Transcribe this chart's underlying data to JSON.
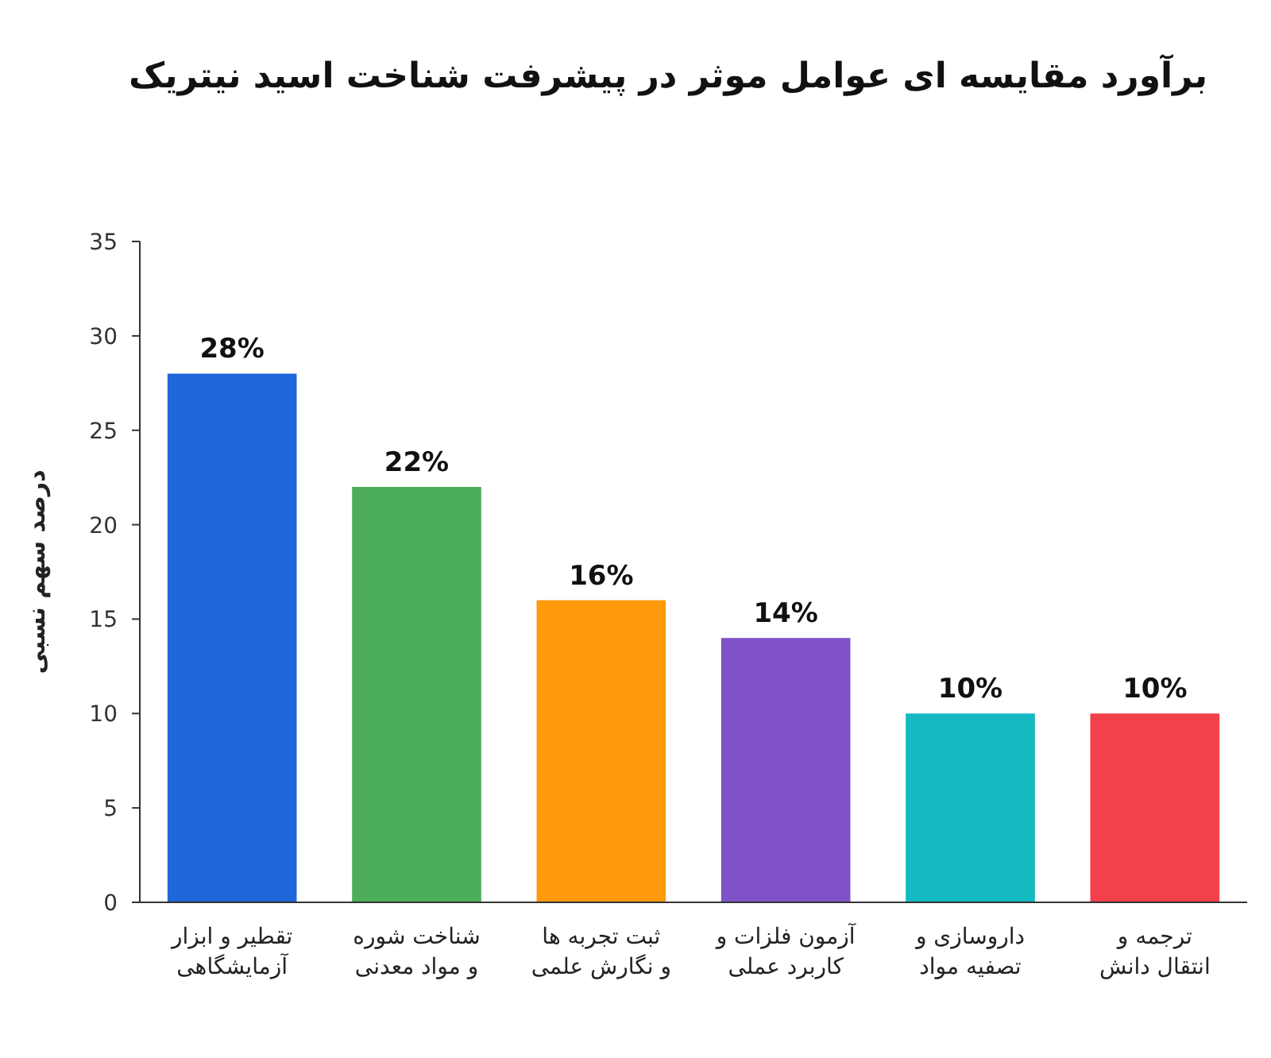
{
  "chart_data": {
    "type": "bar",
    "title": "برآورد مقایسه ای عوامل موثر در پیشرفت شناخت اسید نیتریک",
    "ylabel": "درصد سهم نسبی",
    "categories": [
      "تقطیر و ابزار\nآزمایشگاهی",
      "شناخت شوره\nو مواد معدنی",
      "ثبت تجربه ها\nو نگارش علمی",
      "آزمون فلزات و\nکاربرد عملی",
      "داروسازی و\nتصفیه مواد",
      "ترجمه و\nانتقال دانش"
    ],
    "values": [
      28,
      22,
      16,
      14,
      10,
      10
    ],
    "value_labels": [
      "28%",
      "22%",
      "16%",
      "14%",
      "10%",
      "10%"
    ],
    "colors": [
      "#1f66d9",
      "#4cae5a",
      "#fe9a0c",
      "#7e52c6",
      "#14b9c1",
      "#f2414a"
    ],
    "ylim": [
      0,
      35
    ],
    "yticks": [
      0,
      5,
      10,
      15,
      20,
      25,
      30,
      35
    ],
    "grid": false
  }
}
